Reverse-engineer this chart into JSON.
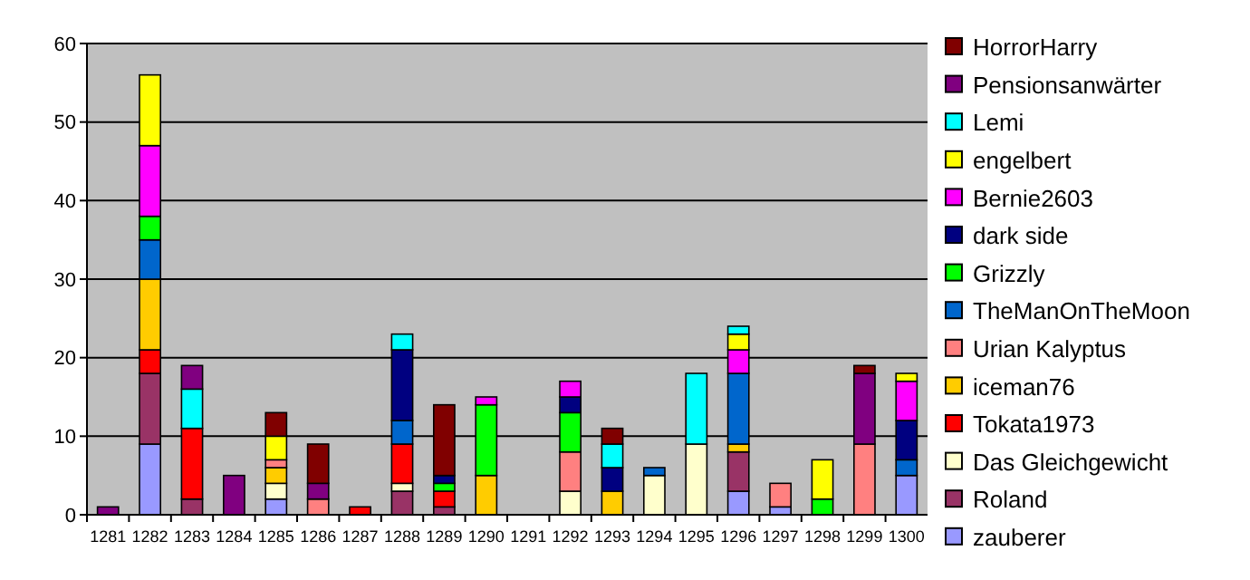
{
  "chart_data": {
    "type": "bar",
    "stacked": true,
    "categories": [
      "1281",
      "1282",
      "1283",
      "1284",
      "1285",
      "1286",
      "1287",
      "1288",
      "1289",
      "1290",
      "1291",
      "1292",
      "1293",
      "1294",
      "1295",
      "1296",
      "1297",
      "1298",
      "1299",
      "1300"
    ],
    "ylim": [
      0,
      60
    ],
    "yticks": [
      0,
      10,
      20,
      30,
      40,
      50,
      60
    ],
    "grid": "y",
    "legend": "right",
    "series": [
      {
        "name": "zauberer",
        "color": "#9999ff",
        "values": [
          null,
          9,
          null,
          null,
          2,
          null,
          null,
          null,
          null,
          null,
          null,
          null,
          null,
          null,
          null,
          3,
          1,
          null,
          null,
          5
        ]
      },
      {
        "name": "Roland",
        "color": "#993366",
        "values": [
          null,
          9,
          2,
          null,
          null,
          null,
          null,
          3,
          1,
          null,
          null,
          null,
          null,
          null,
          null,
          5,
          null,
          null,
          null,
          null
        ]
      },
      {
        "name": "Das Gleichgewicht",
        "color": "#ffffcc",
        "values": [
          null,
          null,
          null,
          null,
          2,
          null,
          null,
          1,
          null,
          null,
          null,
          3,
          null,
          5,
          9,
          null,
          null,
          null,
          null,
          null
        ]
      },
      {
        "name": "Tokata1973",
        "color": "#ff0000",
        "values": [
          null,
          3,
          9,
          null,
          null,
          null,
          1,
          5,
          2,
          null,
          null,
          null,
          null,
          null,
          null,
          null,
          null,
          null,
          null,
          null
        ]
      },
      {
        "name": "iceman76",
        "color": "#ffcc00",
        "values": [
          null,
          9,
          null,
          null,
          2,
          null,
          null,
          null,
          null,
          5,
          null,
          null,
          3,
          null,
          null,
          1,
          null,
          null,
          null,
          null
        ]
      },
      {
        "name": "Urian Kalyptus",
        "color": "#ff8080",
        "values": [
          null,
          null,
          null,
          null,
          1,
          2,
          null,
          null,
          null,
          null,
          null,
          5,
          null,
          null,
          null,
          null,
          3,
          null,
          9,
          null
        ]
      },
      {
        "name": "TheManOnTheMoon",
        "color": "#0066cc",
        "values": [
          null,
          5,
          null,
          null,
          null,
          null,
          null,
          3,
          null,
          null,
          null,
          null,
          null,
          1,
          null,
          9,
          null,
          null,
          null,
          2
        ]
      },
      {
        "name": "Grizzly",
        "color": "#00ff00",
        "values": [
          null,
          3,
          null,
          null,
          null,
          null,
          null,
          null,
          1,
          9,
          null,
          5,
          null,
          null,
          null,
          null,
          null,
          2,
          null,
          null
        ]
      },
      {
        "name": "dark side",
        "color": "#000080",
        "values": [
          null,
          null,
          null,
          null,
          null,
          null,
          null,
          9,
          1,
          null,
          null,
          2,
          3,
          null,
          null,
          null,
          null,
          null,
          null,
          5
        ]
      },
      {
        "name": "Bernie2603",
        "color": "#ff00ff",
        "values": [
          null,
          9,
          null,
          null,
          null,
          null,
          null,
          null,
          null,
          1,
          null,
          2,
          null,
          null,
          null,
          3,
          null,
          null,
          null,
          5
        ]
      },
      {
        "name": "engelbert",
        "color": "#ffff00",
        "values": [
          null,
          9,
          null,
          null,
          3,
          null,
          null,
          null,
          null,
          null,
          null,
          null,
          null,
          null,
          null,
          2,
          null,
          5,
          null,
          1
        ]
      },
      {
        "name": "Lemi",
        "color": "#00ffff",
        "values": [
          null,
          null,
          5,
          null,
          null,
          null,
          null,
          2,
          null,
          null,
          null,
          null,
          3,
          null,
          9,
          1,
          null,
          null,
          null,
          null
        ]
      },
      {
        "name": "Pensionsanwärter",
        "color": "#800080",
        "values": [
          1,
          null,
          3,
          5,
          null,
          2,
          null,
          null,
          null,
          null,
          null,
          null,
          null,
          null,
          null,
          null,
          null,
          null,
          9,
          null
        ]
      },
      {
        "name": "HorrorHarry",
        "color": "#800000",
        "values": [
          null,
          null,
          null,
          null,
          3,
          5,
          null,
          null,
          9,
          null,
          null,
          null,
          2,
          null,
          null,
          null,
          null,
          null,
          1,
          null
        ]
      }
    ]
  }
}
